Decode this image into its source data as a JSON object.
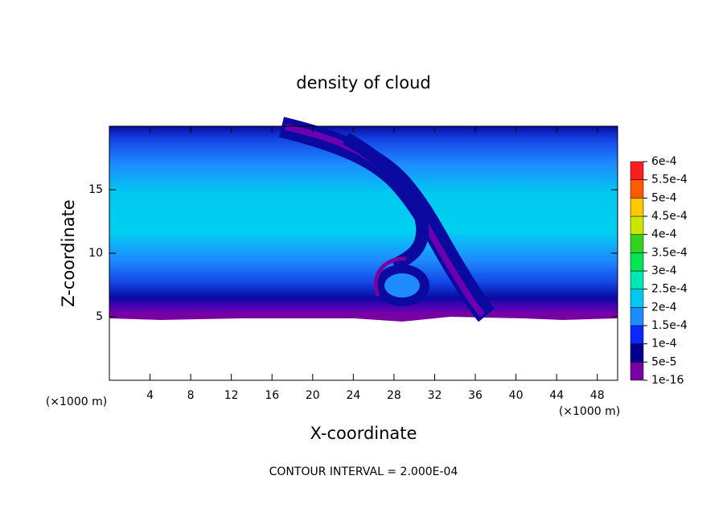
{
  "chart_data": {
    "type": "contour",
    "title": "density of cloud",
    "x_label": "X-coordinate",
    "y_label": "Z-coordinate",
    "unit_labels": [
      "(×1000 m)",
      "(×1000 m)"
    ],
    "footer": "CONTOUR INTERVAL = 2.000E-04",
    "xlim": [
      0,
      50
    ],
    "xticks": [
      4,
      8,
      12,
      16,
      20,
      24,
      28,
      32,
      36,
      40,
      44,
      48
    ],
    "ylim": [
      0,
      20
    ],
    "yticks": [
      5,
      10,
      15
    ],
    "colorbar": {
      "levels": [
        {
          "value": 1e-16,
          "label": "1e-16"
        },
        {
          "value": 5e-05,
          "label": "5e-5"
        },
        {
          "value": 0.0001,
          "label": "1e-4"
        },
        {
          "value": 0.00015,
          "label": "1.5e-4"
        },
        {
          "value": 0.0002,
          "label": "2e-4"
        },
        {
          "value": 0.00025,
          "label": "2.5e-4"
        },
        {
          "value": 0.0003,
          "label": "3e-4"
        },
        {
          "value": 0.00035,
          "label": "3.5e-4"
        },
        {
          "value": 0.0004,
          "label": "4e-4"
        },
        {
          "value": 0.00045,
          "label": "4.5e-4"
        },
        {
          "value": 0.0005,
          "label": "5e-4"
        },
        {
          "value": 0.00055,
          "label": "5.5e-4"
        },
        {
          "value": 0.0006,
          "label": "6e-4"
        }
      ],
      "colors": [
        "#7800a0",
        "#00008c",
        "#0a28ff",
        "#1e8cff",
        "#00c8f0",
        "#00e6b4",
        "#00e650",
        "#32d21e",
        "#c8e600",
        "#ffc800",
        "#ff5a00",
        "#ff1e1e"
      ]
    }
  }
}
